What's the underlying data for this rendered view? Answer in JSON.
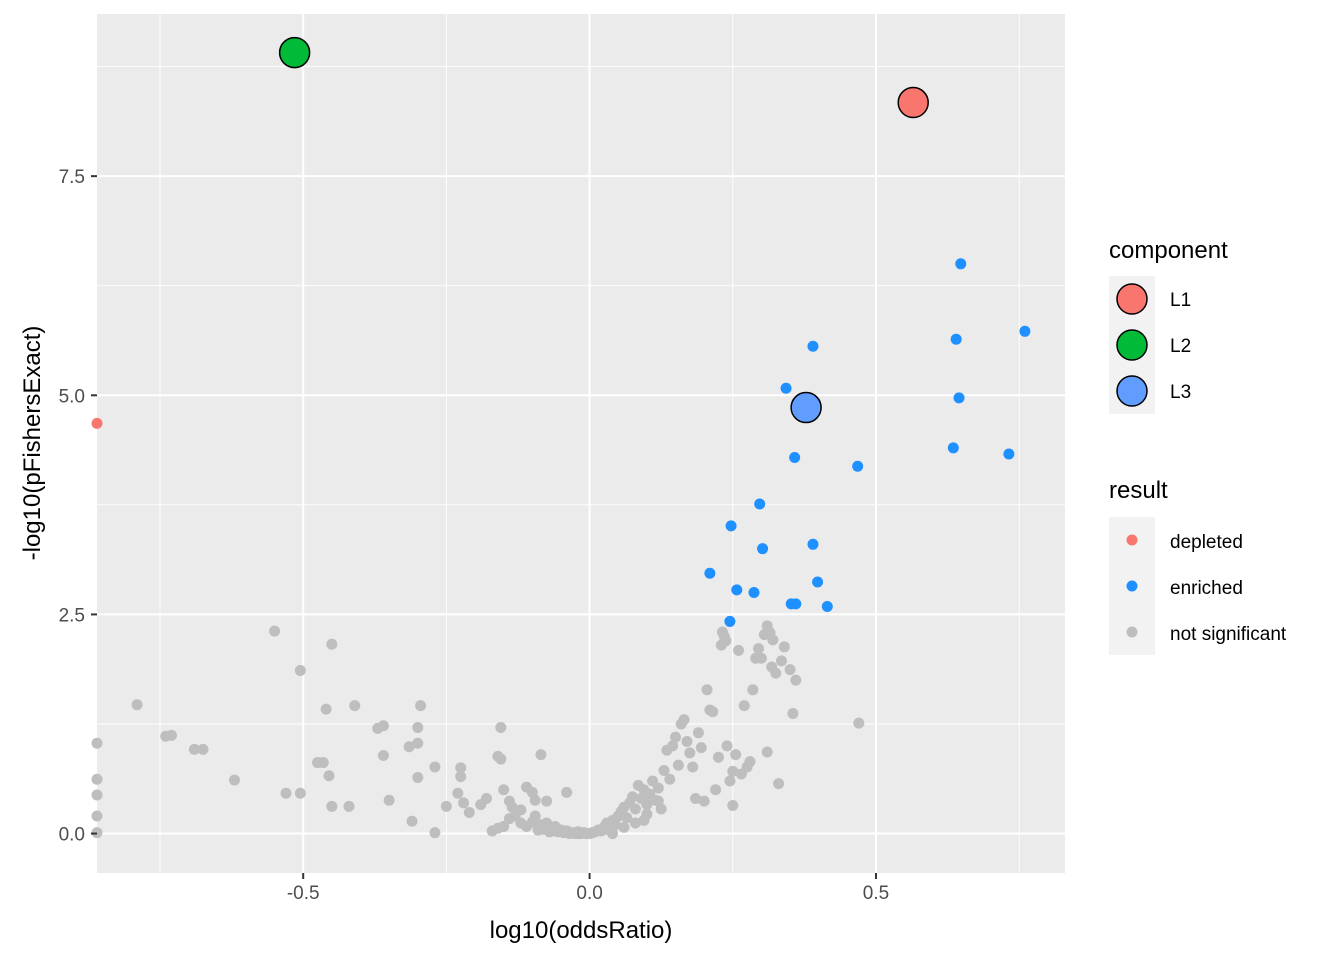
{
  "chart_data": {
    "type": "scatter",
    "xlabel": "log10(oddsRatio)",
    "ylabel": "-log10(pFishersExact)",
    "xlim": [
      -0.86,
      0.83
    ],
    "ylim": [
      -0.45,
      9.35
    ],
    "x_ticks": [
      -0.5,
      0.0,
      0.5
    ],
    "x_tick_labels": [
      "-0.5",
      "0.0",
      "0.5"
    ],
    "y_ticks": [
      0.0,
      2.5,
      5.0,
      7.5
    ],
    "y_tick_labels": [
      "0.0",
      "2.5",
      "5.0",
      "7.5"
    ],
    "grid": true,
    "colors": {
      "panel_background": "#ebebeb",
      "grid": "#ffffff",
      "depleted": "#f8766d",
      "enriched": "#1e90ff",
      "not_significant": "#bebebe",
      "L1": "#f8766d",
      "L2": "#00ba38",
      "L3": "#619cff"
    },
    "legend_placement": "right",
    "legends": [
      {
        "title": "component",
        "entries": [
          {
            "label": "L1",
            "color": "#f8766d"
          },
          {
            "label": "L2",
            "color": "#00ba38"
          },
          {
            "label": "L3",
            "color": "#619cff"
          }
        ]
      },
      {
        "title": "result",
        "entries": [
          {
            "label": "depleted",
            "color": "#f8766d"
          },
          {
            "label": "enriched",
            "color": "#1e90ff"
          },
          {
            "label": "not significant",
            "color": "#bebebe"
          }
        ]
      }
    ],
    "components": [
      {
        "name": "L1",
        "x": 0.565,
        "y": 8.34
      },
      {
        "name": "L2",
        "x": -0.515,
        "y": 8.91
      },
      {
        "name": "L3",
        "x": 0.378,
        "y": 4.86
      }
    ],
    "series": [
      {
        "name": "depleted",
        "points": [
          [
            -0.86,
            4.68
          ]
        ]
      },
      {
        "name": "enriched",
        "points": [
          [
            0.648,
            6.5
          ],
          [
            0.76,
            5.73
          ],
          [
            0.64,
            5.64
          ],
          [
            0.39,
            5.56
          ],
          [
            0.343,
            5.08
          ],
          [
            0.645,
            4.97
          ],
          [
            0.635,
            4.4
          ],
          [
            0.732,
            4.33
          ],
          [
            0.358,
            4.29
          ],
          [
            0.468,
            4.19
          ],
          [
            0.297,
            3.76
          ],
          [
            0.247,
            3.51
          ],
          [
            0.39,
            3.3
          ],
          [
            0.302,
            3.25
          ],
          [
            0.21,
            2.97
          ],
          [
            0.398,
            2.87
          ],
          [
            0.257,
            2.78
          ],
          [
            0.287,
            2.75
          ],
          [
            0.352,
            2.62
          ],
          [
            0.36,
            2.62
          ],
          [
            0.415,
            2.59
          ],
          [
            0.245,
            2.42
          ]
        ]
      },
      {
        "name": "not significant",
        "points": [
          [
            -0.55,
            2.31
          ],
          [
            -0.45,
            2.16
          ],
          [
            -0.505,
            1.86
          ],
          [
            -0.79,
            1.47
          ],
          [
            -0.41,
            1.46
          ],
          [
            -0.295,
            1.46
          ],
          [
            -0.46,
            1.42
          ],
          [
            -0.74,
            1.11
          ],
          [
            -0.73,
            1.12
          ],
          [
            -0.69,
            0.96
          ],
          [
            -0.675,
            0.96
          ],
          [
            -0.36,
            1.23
          ],
          [
            -0.37,
            1.2
          ],
          [
            -0.3,
            1.21
          ],
          [
            -0.3,
            1.03
          ],
          [
            -0.315,
            0.99
          ],
          [
            -0.36,
            0.89
          ],
          [
            -0.475,
            0.81
          ],
          [
            -0.465,
            0.81
          ],
          [
            -0.455,
            0.66
          ],
          [
            -0.62,
            0.61
          ],
          [
            -0.53,
            0.46
          ],
          [
            -0.505,
            0.46
          ],
          [
            -0.45,
            0.31
          ],
          [
            -0.42,
            0.31
          ],
          [
            -0.35,
            0.38
          ],
          [
            -0.3,
            0.64
          ],
          [
            -0.27,
            0.76
          ],
          [
            -0.25,
            0.31
          ],
          [
            -0.31,
            0.14
          ],
          [
            -0.27,
            0.01
          ],
          [
            -0.225,
            0.75
          ],
          [
            -0.225,
            0.65
          ],
          [
            -0.23,
            0.46
          ],
          [
            -0.22,
            0.35
          ],
          [
            -0.21,
            0.24
          ],
          [
            -0.19,
            0.33
          ],
          [
            -0.18,
            0.4
          ],
          [
            -0.16,
            0.88
          ],
          [
            -0.155,
            0.85
          ],
          [
            -0.155,
            1.21
          ],
          [
            -0.15,
            0.5
          ],
          [
            -0.14,
            0.37
          ],
          [
            -0.135,
            0.3
          ],
          [
            -0.12,
            0.27
          ],
          [
            -0.11,
            0.53
          ],
          [
            -0.1,
            0.47
          ],
          [
            -0.095,
            0.38
          ],
          [
            -0.085,
            0.9
          ],
          [
            -0.075,
            0.37
          ],
          [
            -0.04,
            0.47
          ],
          [
            -0.17,
            0.03
          ],
          [
            -0.16,
            0.06
          ],
          [
            -0.15,
            0.08
          ],
          [
            -0.14,
            0.17
          ],
          [
            -0.13,
            0.2
          ],
          [
            -0.12,
            0.12
          ],
          [
            -0.11,
            0.08
          ],
          [
            -0.1,
            0.13
          ],
          [
            -0.095,
            0.2
          ],
          [
            -0.09,
            0.04
          ],
          [
            -0.085,
            0.1
          ],
          [
            -0.08,
            0.05
          ],
          [
            -0.075,
            0.12
          ],
          [
            -0.07,
            0.02
          ],
          [
            -0.065,
            0.05
          ],
          [
            -0.06,
            0.08
          ],
          [
            -0.055,
            0.02
          ],
          [
            -0.05,
            0.04
          ],
          [
            -0.045,
            0.01
          ],
          [
            -0.04,
            0.03
          ],
          [
            -0.035,
            0.0
          ],
          [
            -0.03,
            0.01
          ],
          [
            -0.025,
            0.0
          ],
          [
            -0.02,
            0.02
          ],
          [
            -0.015,
            0.0
          ],
          [
            -0.01,
            0.01
          ],
          [
            -0.005,
            0.0
          ],
          [
            0.0,
            0.0
          ],
          [
            0.005,
            0.01
          ],
          [
            0.01,
            0.02
          ],
          [
            0.015,
            0.04
          ],
          [
            0.02,
            0.03
          ],
          [
            0.025,
            0.07
          ],
          [
            0.03,
            0.12
          ],
          [
            0.035,
            0.08
          ],
          [
            0.04,
            0.15
          ],
          [
            0.045,
            0.1
          ],
          [
            0.05,
            0.2
          ],
          [
            0.055,
            0.25
          ],
          [
            0.06,
            0.3
          ],
          [
            0.065,
            0.18
          ],
          [
            0.07,
            0.35
          ],
          [
            0.075,
            0.42
          ],
          [
            0.08,
            0.28
          ],
          [
            0.085,
            0.55
          ],
          [
            0.09,
            0.4
          ],
          [
            0.095,
            0.5
          ],
          [
            0.1,
            0.33
          ],
          [
            0.105,
            0.45
          ],
          [
            0.11,
            0.6
          ],
          [
            0.115,
            0.38
          ],
          [
            0.12,
            0.52
          ],
          [
            0.125,
            0.28
          ],
          [
            0.13,
            0.72
          ],
          [
            0.135,
            0.95
          ],
          [
            0.14,
            0.62
          ],
          [
            0.145,
            1.0
          ],
          [
            0.15,
            1.1
          ],
          [
            0.155,
            0.78
          ],
          [
            0.16,
            1.25
          ],
          [
            0.165,
            1.3
          ],
          [
            0.17,
            1.05
          ],
          [
            0.175,
            0.92
          ],
          [
            0.18,
            0.76
          ],
          [
            0.185,
            0.4
          ],
          [
            0.19,
            1.15
          ],
          [
            0.195,
            0.98
          ],
          [
            0.2,
            0.37
          ],
          [
            0.205,
            1.64
          ],
          [
            0.21,
            1.41
          ],
          [
            0.215,
            1.39
          ],
          [
            0.22,
            0.5
          ],
          [
            0.225,
            0.87
          ],
          [
            0.23,
            2.15
          ],
          [
            0.232,
            2.3
          ],
          [
            0.235,
            2.25
          ],
          [
            0.238,
            2.2
          ],
          [
            0.24,
            1.0
          ],
          [
            0.245,
            0.6
          ],
          [
            0.25,
            0.71
          ],
          [
            0.255,
            0.9
          ],
          [
            0.26,
            2.09
          ],
          [
            0.265,
            0.68
          ],
          [
            0.27,
            1.46
          ],
          [
            0.275,
            0.76
          ],
          [
            0.28,
            0.82
          ],
          [
            0.285,
            1.64
          ],
          [
            0.29,
            2.0
          ],
          [
            0.295,
            2.11
          ],
          [
            0.3,
            2.0
          ],
          [
            0.305,
            2.27
          ],
          [
            0.31,
            2.37
          ],
          [
            0.315,
            2.29
          ],
          [
            0.318,
            1.9
          ],
          [
            0.32,
            2.21
          ],
          [
            0.325,
            1.83
          ],
          [
            0.33,
            0.57
          ],
          [
            0.335,
            1.97
          ],
          [
            0.34,
            2.13
          ],
          [
            0.35,
            1.87
          ],
          [
            0.355,
            1.37
          ],
          [
            0.36,
            1.75
          ],
          [
            0.31,
            0.93
          ],
          [
            0.25,
            0.32
          ],
          [
            0.47,
            1.26
          ],
          [
            0.04,
            0.0
          ],
          [
            0.06,
            0.07
          ],
          [
            0.08,
            0.12
          ],
          [
            0.1,
            0.22
          ],
          [
            0.12,
            0.37
          ],
          [
            0.095,
            0.15
          ],
          [
            0.03,
            0.05
          ],
          [
            -0.02,
            0.0
          ],
          [
            -0.06,
            0.03
          ],
          [
            -0.86,
            1.03
          ],
          [
            -0.86,
            0.62
          ],
          [
            -0.86,
            0.44
          ],
          [
            -0.86,
            0.2
          ],
          [
            -0.86,
            0.01
          ]
        ]
      }
    ]
  }
}
